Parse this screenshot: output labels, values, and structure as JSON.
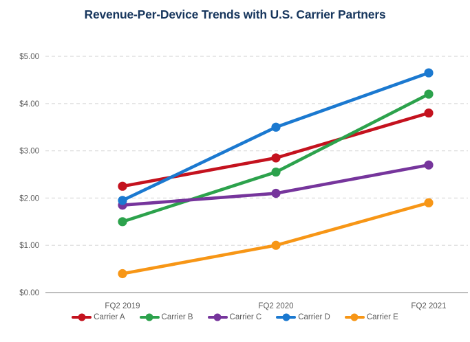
{
  "chart_data": {
    "type": "line",
    "title": "Revenue-Per-Device Trends with U.S. Carrier Partners",
    "categories": [
      "FQ2 2019",
      "FQ2 2020",
      "FQ2 2021"
    ],
    "series": [
      {
        "name": "Carrier A",
        "color": "#C4121E",
        "values": [
          2.25,
          2.85,
          3.8
        ]
      },
      {
        "name": "Carrier B",
        "color": "#2CA24C",
        "values": [
          1.5,
          2.55,
          4.2
        ]
      },
      {
        "name": "Carrier C",
        "color": "#76359C",
        "values": [
          1.85,
          2.1,
          2.7
        ]
      },
      {
        "name": "Carrier D",
        "color": "#1B79D0",
        "values": [
          1.95,
          3.5,
          4.65
        ]
      },
      {
        "name": "Carrier E",
        "color": "#F79616",
        "values": [
          0.4,
          1.0,
          1.9
        ]
      }
    ],
    "ylim": [
      0,
      5
    ],
    "y_ticks": [
      {
        "value": 5,
        "label": "$5.00"
      },
      {
        "value": 4,
        "label": "$4.00"
      },
      {
        "value": 3,
        "label": "$3.00"
      },
      {
        "value": 2,
        "label": "$2.00"
      },
      {
        "value": 1,
        "label": "$1.00"
      },
      {
        "value": 0,
        "label": "$0.00"
      }
    ],
    "xlabel": "",
    "ylabel": "",
    "grid": "horizontal-dashed",
    "legend_position": "bottom",
    "marker": "dot"
  },
  "colors": {
    "title": "#17365D",
    "axis_text": "#5A5A5A",
    "gridline": "#DADADA",
    "axis_line": "#A8A8A8",
    "background": "#FFFFFF"
  }
}
